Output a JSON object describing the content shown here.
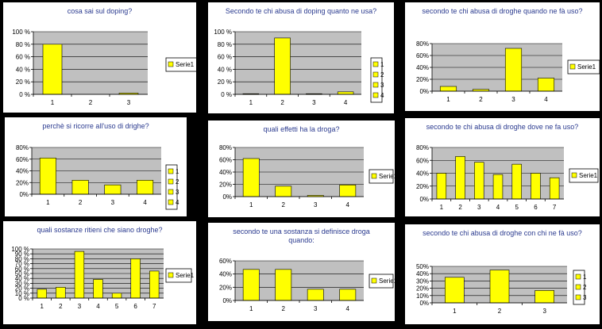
{
  "chart_data": [
    {
      "type": "bar",
      "title": "cosa sai sul doping?",
      "categories": [
        "1",
        "2",
        "3"
      ],
      "series": [
        {
          "name": "Serie1",
          "values": [
            80,
            0,
            2
          ]
        }
      ],
      "ylim": [
        0,
        100
      ],
      "yticks": [
        "0 %",
        "20 %",
        "40 %",
        "60 %",
        "80 %",
        "100 %"
      ],
      "legend": "right",
      "grid": true,
      "bar_color": "#ffff00"
    },
    {
      "type": "bar",
      "title": "Secondo te chi abusa di doping quanto ne usa?",
      "categories": [
        "1",
        "2",
        "3",
        "4"
      ],
      "series": [
        {
          "values": [
            1,
            90,
            1,
            4
          ]
        }
      ],
      "ylim": [
        0,
        100
      ],
      "yticks": [
        "0 %",
        "20 %",
        "40 %",
        "60 %",
        "80 %",
        "100 %"
      ],
      "legend_entries": [
        "1",
        "2",
        "3",
        "4"
      ],
      "legend": "right",
      "grid": true,
      "bar_color": "#ffff00"
    },
    {
      "type": "bar",
      "title": "secondo te chi abusa di droghe quando ne fà uso?",
      "categories": [
        "1",
        "2",
        "3",
        "4"
      ],
      "series": [
        {
          "name": "Serie1",
          "values": [
            8,
            3,
            72,
            22
          ]
        }
      ],
      "ylim": [
        0,
        80
      ],
      "yticks": [
        "0%",
        "20%",
        "40%",
        "60%",
        "80%"
      ],
      "legend": "right",
      "grid": true,
      "bar_color": "#ffff00"
    },
    {
      "type": "bar",
      "title": "perchè si ricorre all'uso di drighe?",
      "categories": [
        "1",
        "2",
        "3",
        "4"
      ],
      "series": [
        {
          "values": [
            62,
            24,
            16,
            24
          ]
        }
      ],
      "ylim": [
        0,
        80
      ],
      "yticks": [
        "0%",
        "20%",
        "40%",
        "60%",
        "80%"
      ],
      "legend_entries": [
        "1",
        "2",
        "3",
        "4"
      ],
      "legend": "right",
      "grid": true,
      "bar_color": "#ffff00"
    },
    {
      "type": "bar",
      "title": "quali effetti ha la droga?",
      "categories": [
        "1",
        "2",
        "3",
        "4"
      ],
      "series": [
        {
          "name": "Serie1",
          "values": [
            62,
            17,
            2,
            19
          ]
        }
      ],
      "ylim": [
        0,
        80
      ],
      "yticks": [
        "0%",
        "20%",
        "40%",
        "60%",
        "80%"
      ],
      "legend": "right",
      "grid": true,
      "bar_color": "#ffff00"
    },
    {
      "type": "bar",
      "title": "secondo te chi abusa di droghe dove ne fa uso?",
      "categories": [
        "1",
        "2",
        "3",
        "4",
        "5",
        "6",
        "7"
      ],
      "series": [
        {
          "name": "Serie1",
          "values": [
            40,
            66,
            57,
            38,
            54,
            40,
            33
          ]
        }
      ],
      "ylim": [
        0,
        80
      ],
      "yticks": [
        "0%",
        "20%",
        "40%",
        "60%",
        "80%"
      ],
      "legend": "right",
      "grid": true,
      "bar_color": "#ffff00"
    },
    {
      "type": "bar",
      "title": "quali sostanze ritieni che siano droghe?",
      "categories": [
        "1",
        "2",
        "3",
        "4",
        "5",
        "6",
        "7"
      ],
      "series": [
        {
          "name": "Serie1",
          "values": [
            18,
            22,
            95,
            38,
            10,
            80,
            55
          ]
        }
      ],
      "ylim": [
        0,
        100
      ],
      "yticks": [
        "0 %",
        "10 %",
        "20 %",
        "30 %",
        "40 %",
        "50 %",
        "60 %",
        "70 %",
        "80 %",
        "90 %",
        "100 %"
      ],
      "legend": "right",
      "grid": true,
      "bar_color": "#ffff00"
    },
    {
      "type": "bar",
      "title": "secondo te una sostanza si definisce droga quando:",
      "categories": [
        "1",
        "2",
        "3",
        "4"
      ],
      "series": [
        {
          "name": "Serie1",
          "values": [
            47,
            47,
            17,
            17
          ]
        }
      ],
      "ylim": [
        0,
        60
      ],
      "yticks": [
        "0%",
        "20%",
        "40%",
        "60%"
      ],
      "legend": "right",
      "grid": true,
      "bar_color": "#ffff00"
    },
    {
      "type": "bar",
      "title": "secondo te chi abusa di droghe con chi ne fà uso?",
      "categories": [
        "1",
        "2",
        "3"
      ],
      "series": [
        {
          "values": [
            35,
            45,
            17
          ]
        }
      ],
      "ylim": [
        0,
        50
      ],
      "yticks": [
        "0%",
        "10%",
        "20%",
        "30%",
        "40%",
        "50%"
      ],
      "legend_entries": [
        "1",
        "2",
        "3"
      ],
      "legend": "right",
      "grid": true,
      "bar_color": "#ffff00"
    }
  ]
}
